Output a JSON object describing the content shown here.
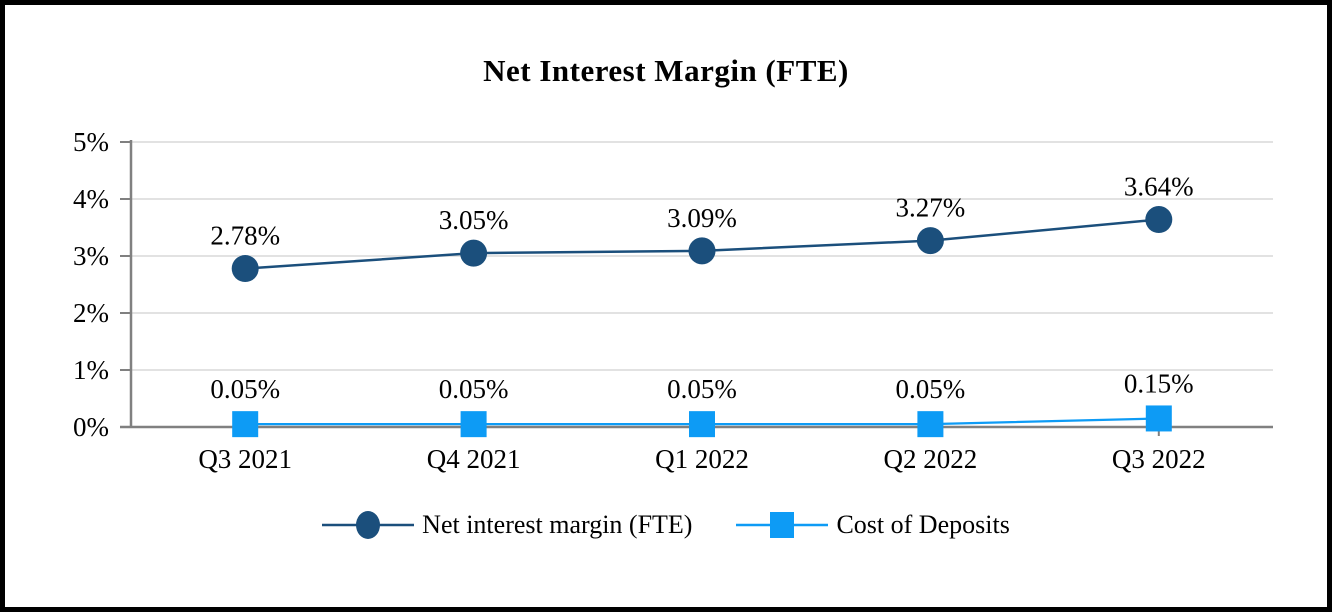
{
  "chart_data": {
    "type": "line",
    "title": "Net Interest Margin (FTE)",
    "categories": [
      "Q3 2021",
      "Q4 2021",
      "Q1 2022",
      "Q2 2022",
      "Q3 2022"
    ],
    "series": [
      {
        "name": "Net interest margin (FTE)",
        "values": [
          2.78,
          3.05,
          3.09,
          3.27,
          3.64
        ],
        "data_labels": [
          "2.78%",
          "3.05%",
          "3.09%",
          "3.27%",
          "3.64%"
        ],
        "color": "#1B4F7C",
        "marker": "circle"
      },
      {
        "name": "Cost of Deposits",
        "values": [
          0.05,
          0.05,
          0.05,
          0.05,
          0.15
        ],
        "data_labels": [
          "0.05%",
          "0.05%",
          "0.05%",
          "0.05%",
          "0.15%"
        ],
        "color": "#0D9BF5",
        "marker": "square"
      }
    ],
    "y_axis": {
      "min": 0,
      "max": 5,
      "tick_labels": [
        "0%",
        "1%",
        "2%",
        "3%",
        "4%",
        "5%"
      ]
    },
    "grid": true,
    "legend_position": "bottom",
    "axis_color": "#808080",
    "gridline_color": "#D9D9D9",
    "label_color": "#000000"
  }
}
